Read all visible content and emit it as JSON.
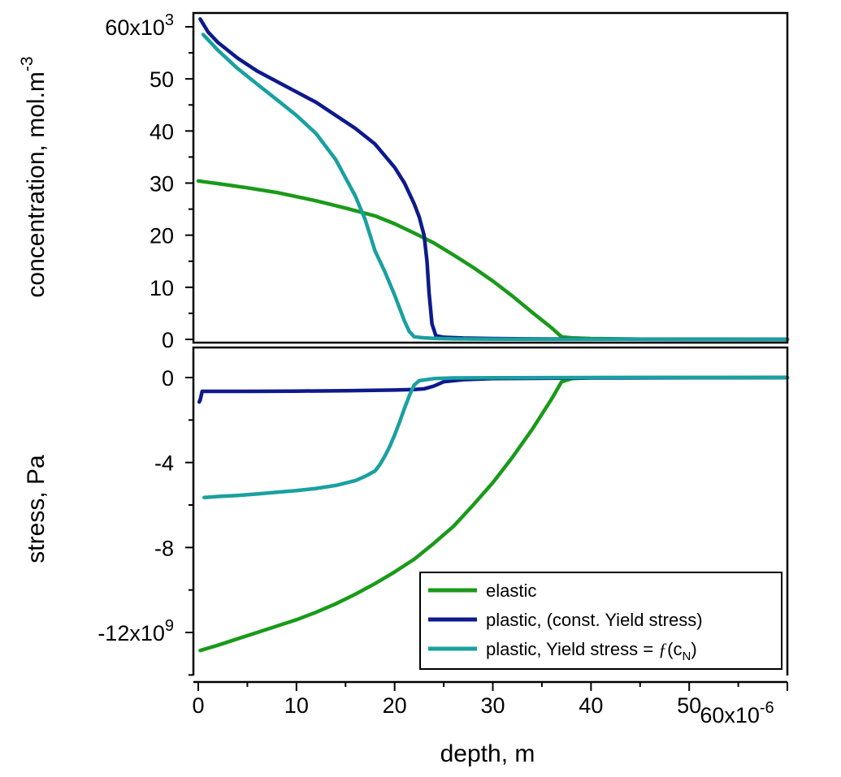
{
  "chart_data": [
    {
      "type": "line",
      "ylabel": "concentration, mol.m",
      "ylabel_superscript": "-3",
      "ylim": [
        0,
        60000
      ],
      "yticks": [
        0,
        10000,
        20000,
        30000,
        40000,
        50000,
        60000
      ],
      "ytick_labels": [
        "0",
        "10",
        "20",
        "30",
        "40",
        "50",
        "60x10"
      ],
      "ytick_top_exponent": "3",
      "xlim": [
        0,
        6e-05
      ],
      "series": [
        {
          "name": "elastic",
          "color": "#1a9a1a",
          "x": [
            0,
            2e-06,
            5e-06,
            8e-06,
            1e-05,
            1.2e-05,
            1.5e-05,
            1.8e-05,
            2e-05,
            2.2e-05,
            2.4e-05,
            2.6e-05,
            2.8e-05,
            3e-05,
            3.2e-05,
            3.4e-05,
            3.6e-05,
            3.7e-05,
            3.8e-05,
            4e-05,
            4.5e-05,
            5e-05,
            6e-05
          ],
          "y": [
            30400,
            29900,
            29100,
            28200,
            27400,
            26600,
            25200,
            23700,
            22200,
            20400,
            18500,
            16200,
            13800,
            11200,
            8300,
            5200,
            2200,
            500,
            300,
            150,
            50,
            20,
            0
          ]
        },
        {
          "name": "plastic, (const. Yield stress)",
          "color": "#0d1a8c",
          "x": [
            2e-07,
            1e-06,
            2e-06,
            4e-06,
            6e-06,
            8e-06,
            1e-05,
            1.2e-05,
            1.4e-05,
            1.6e-05,
            1.8e-05,
            2e-05,
            2.1e-05,
            2.2e-05,
            2.25e-05,
            2.3e-05,
            2.33e-05,
            2.35e-05,
            2.38e-05,
            2.42e-05,
            2.5e-05,
            2.7e-05,
            3e-05,
            3.5e-05,
            4e-05,
            5e-05,
            6e-05
          ],
          "y": [
            61500,
            59000,
            57000,
            54000,
            51500,
            49500,
            47500,
            45500,
            43000,
            40500,
            37500,
            33000,
            30000,
            26000,
            23500,
            20000,
            15000,
            9000,
            3000,
            700,
            400,
            250,
            150,
            80,
            50,
            20,
            0
          ]
        },
        {
          "name": "plastic, Yield stress = ƒ(c_N)",
          "color": "#1aa0a0",
          "x": [
            5e-07,
            2e-06,
            4e-06,
            6e-06,
            8e-06,
            1e-05,
            1.2e-05,
            1.4e-05,
            1.6e-05,
            1.7e-05,
            1.75e-05,
            1.8e-05,
            1.9e-05,
            2e-05,
            2.1e-05,
            2.15e-05,
            2.2e-05,
            2.3e-05,
            2.4e-05,
            2.6e-05,
            3e-05,
            3.5e-05,
            4e-05,
            5e-05,
            6e-05
          ],
          "y": [
            58500,
            55500,
            52000,
            49000,
            46000,
            43000,
            39500,
            34500,
            27500,
            23000,
            20000,
            17000,
            13000,
            8500,
            3500,
            1500,
            500,
            300,
            200,
            100,
            50,
            20,
            10,
            0,
            0
          ]
        }
      ]
    },
    {
      "type": "line",
      "ylabel": "stress, Pa",
      "ylim": [
        -14000000000,
        1000000000
      ],
      "yticks": [
        -12000000000,
        -8000000000,
        -4000000000,
        0
      ],
      "ytick_labels": [
        "-12x10",
        "-8",
        "-4",
        "0"
      ],
      "ytick_bottom_exponent": "9",
      "minor_yticks": [
        -14000000000,
        -10000000000,
        -6000000000,
        -2000000000
      ],
      "xlabel": "depth, m",
      "xlim": [
        0,
        6e-05
      ],
      "xticks": [
        0,
        1e-05,
        2e-05,
        3e-05,
        4e-05,
        5e-05,
        6e-05
      ],
      "xtick_labels": [
        "0",
        "10",
        "20",
        "30",
        "40",
        "50",
        "60x10"
      ],
      "xtick_last_exponent": "-6",
      "legend": {
        "placement": "bottom-right",
        "entries": [
          {
            "label": "elastic"
          },
          {
            "label": "plastic, (const. Yield stress)"
          },
          {
            "label_prefix": "plastic, Yield stress = ",
            "label_f": "ƒ",
            "label_paren_open": "(c",
            "label_subscript": "N",
            "label_paren_close": ")"
          }
        ]
      },
      "series": [
        {
          "name": "elastic",
          "color": "#1a9a1a",
          "x": [
            2e-07,
            2e-06,
            4e-06,
            6e-06,
            8e-06,
            1e-05,
            1.2e-05,
            1.4e-05,
            1.6e-05,
            1.8e-05,
            2e-05,
            2.2e-05,
            2.4e-05,
            2.6e-05,
            2.8e-05,
            3e-05,
            3.2e-05,
            3.4e-05,
            3.6e-05,
            3.7e-05,
            3.8e-05,
            4e-05,
            4.5e-05,
            5e-05,
            6e-05
          ],
          "y": [
            -12850000000,
            -12600000000,
            -12300000000,
            -12000000000,
            -11700000000,
            -11400000000,
            -11050000000,
            -10650000000,
            -10200000000,
            -9700000000,
            -9150000000,
            -8550000000,
            -7800000000,
            -7000000000,
            -6000000000,
            -4950000000,
            -3750000000,
            -2450000000,
            -1000000000,
            -200000000,
            -50000000,
            -10000000,
            0,
            0,
            0
          ]
        },
        {
          "name": "plastic, (const. Yield stress)",
          "color": "#0d1a8c",
          "x": [
            1e-07,
            2e-07,
            4e-07,
            5e-06,
            1e-05,
            1.5e-05,
            2e-05,
            2.2e-05,
            2.3e-05,
            2.4e-05,
            2.5e-05,
            2.7e-05,
            3e-05,
            4e-05,
            5e-05,
            6e-05
          ],
          "y": [
            -1150000000,
            -1050000000,
            -650000000,
            -650000000,
            -640000000,
            -620000000,
            -590000000,
            -560000000,
            -530000000,
            -400000000,
            -200000000,
            -100000000,
            -50000000,
            -20000000,
            -10000000,
            0
          ]
        },
        {
          "name": "plastic, Yield stress = ƒ(c_N)",
          "color": "#1aa0a0",
          "x": [
            6e-07,
            2e-06,
            4e-06,
            6e-06,
            8e-06,
            1e-05,
            1.2e-05,
            1.4e-05,
            1.6e-05,
            1.7e-05,
            1.8e-05,
            1.85e-05,
            1.9e-05,
            1.95e-05,
            2e-05,
            2.05e-05,
            2.1e-05,
            2.15e-05,
            2.2e-05,
            2.25e-05,
            2.4e-05,
            2.6e-05,
            3e-05,
            4e-05,
            6e-05
          ],
          "y": [
            -5650000000,
            -5600000000,
            -5550000000,
            -5480000000,
            -5400000000,
            -5320000000,
            -5220000000,
            -5080000000,
            -4850000000,
            -4650000000,
            -4400000000,
            -4100000000,
            -3700000000,
            -3250000000,
            -2700000000,
            -2100000000,
            -1450000000,
            -850000000,
            -350000000,
            -150000000,
            -50000000,
            -20000000,
            -10000000,
            0,
            0
          ]
        }
      ]
    }
  ]
}
